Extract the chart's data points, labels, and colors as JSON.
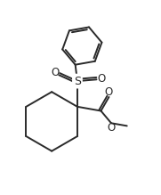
{
  "bg_color": "#ffffff",
  "line_color": "#2a2a2a",
  "line_width": 1.4,
  "figsize": [
    1.81,
    2.19
  ],
  "dpi": 100,
  "xlim": [
    0,
    10
  ],
  "ylim": [
    0,
    12
  ]
}
